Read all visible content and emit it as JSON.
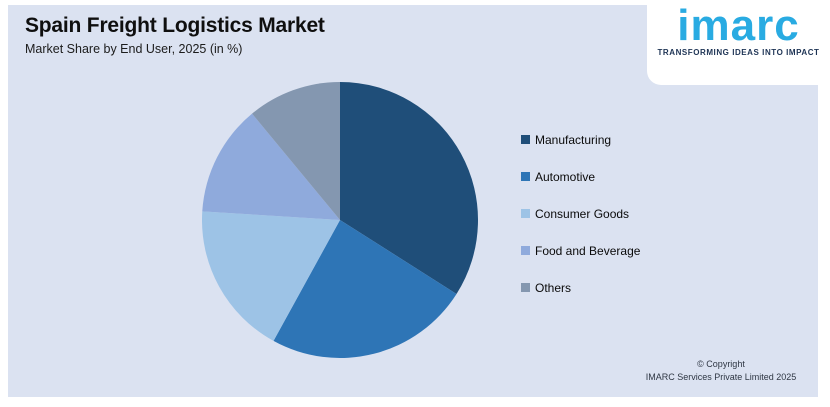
{
  "header": {
    "title": "Spain Freight Logistics Market",
    "subtitle": "Market Share by End User, 2025 (in %)"
  },
  "logo": {
    "brand": "imarc",
    "tagline": "TRANSFORMING IDEAS INTO IMPACT",
    "brand_color": "#29ABE2",
    "tagline_color": "#1d3354"
  },
  "chart_data": {
    "type": "pie",
    "title": "Spain Freight Logistics Market",
    "subtitle": "Market Share by End User, 2025 (in %)",
    "unit": "%",
    "labels": [
      "Manufacturing",
      "Automotive",
      "Consumer Goods",
      "Food and Beverage",
      "Others"
    ],
    "values": [
      34,
      24,
      18,
      13,
      11
    ],
    "colors": [
      "#1F4E79",
      "#2E75B6",
      "#9DC3E6",
      "#8FAADC",
      "#8497B0"
    ],
    "start_angle_deg": 0,
    "direction": "clockwise",
    "legend_position": "right",
    "data_labels": false
  },
  "footer": {
    "line1": "© Copyright",
    "line2": "IMARC Services Private Limited 2025"
  },
  "colors": {
    "page_bg": "#FFFFFF",
    "panel_bg": "#DBE2F1"
  }
}
